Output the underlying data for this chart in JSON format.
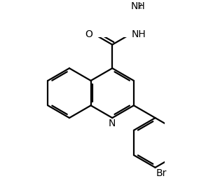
{
  "bg_color": "#ffffff",
  "line_color": "#000000",
  "line_width": 1.6,
  "dbo": 0.022,
  "font_size": 10,
  "font_size_sub": 7,
  "xlim": [
    -0.1,
    1.3
  ],
  "ylim": [
    -0.85,
    0.75
  ]
}
